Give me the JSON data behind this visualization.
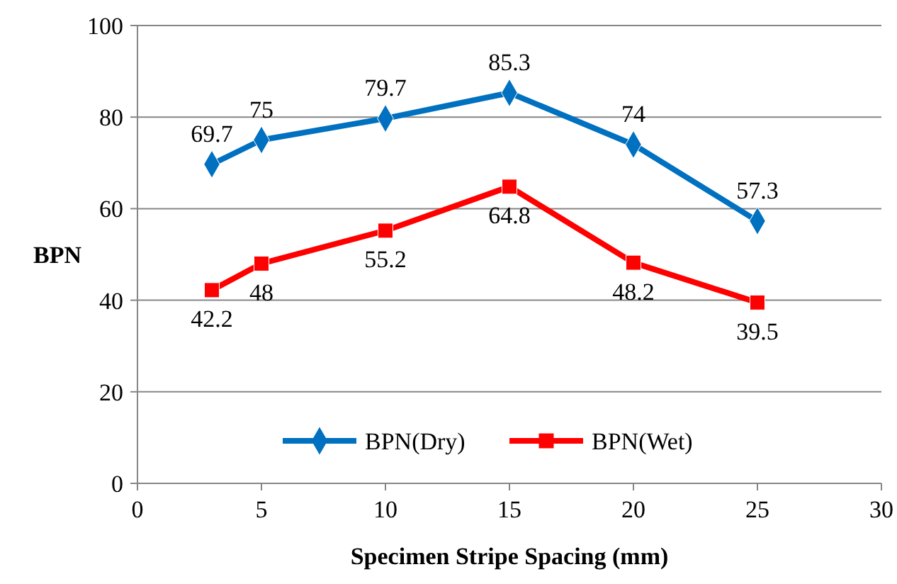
{
  "chart_data": {
    "type": "line",
    "xlabel": "Specimen Stripe Spacing (mm)",
    "ylabel": "BPN",
    "x": [
      3,
      5,
      10,
      15,
      20,
      25
    ],
    "series": [
      {
        "name": "BPN(Dry)",
        "color": "#0070c0",
        "marker": "diamond",
        "values": [
          69.7,
          75,
          79.7,
          85.3,
          74,
          57.3
        ]
      },
      {
        "name": "BPN(Wet)",
        "color": "#ff0000",
        "marker": "square",
        "values": [
          42.2,
          48,
          55.2,
          64.8,
          48.2,
          39.5
        ]
      }
    ],
    "xlim": [
      0,
      30
    ],
    "xticks": [
      0,
      5,
      10,
      15,
      20,
      25,
      30
    ],
    "ylim": [
      0,
      100
    ],
    "yticks": [
      0,
      20,
      40,
      60,
      80,
      100
    ],
    "grid": "y",
    "legend": "bottom",
    "data_labels": true
  }
}
